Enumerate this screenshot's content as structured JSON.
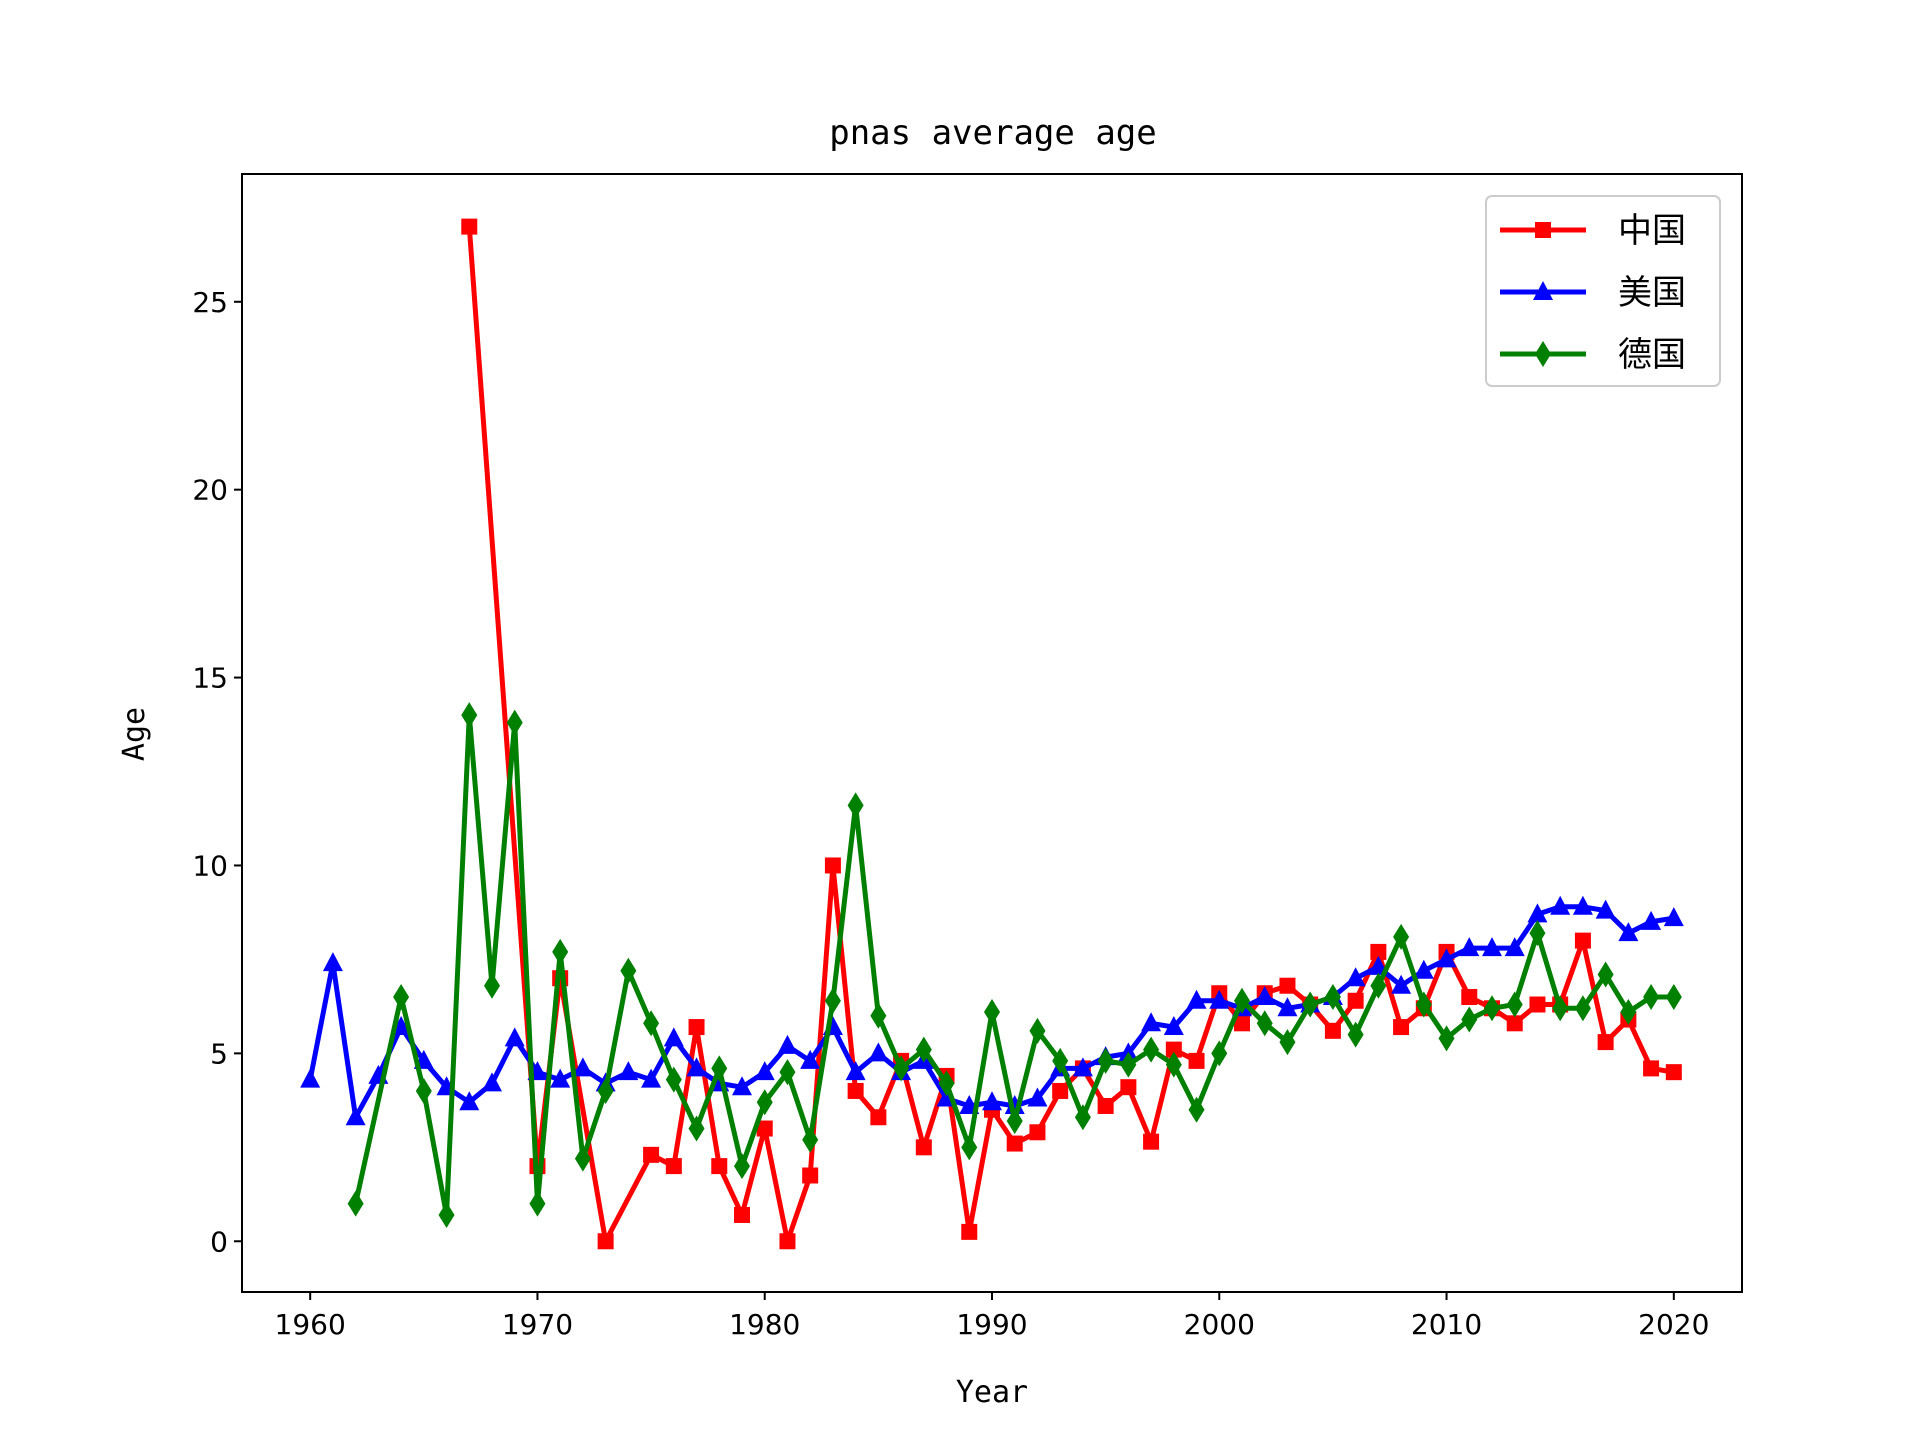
{
  "chart_data": {
    "type": "line",
    "title": "pnas average age",
    "xlabel": "Year",
    "ylabel": "Age",
    "xlim": [
      1957,
      2023
    ],
    "ylim": [
      -1.35,
      28.4
    ],
    "xticks": [
      "1960",
      "1970",
      "1980",
      "1990",
      "2000",
      "2010",
      "2020"
    ],
    "yticks": [
      "0",
      "5",
      "10",
      "15",
      "20",
      "25"
    ],
    "grid": false,
    "legend_position": "top-right",
    "series": [
      {
        "name": "中国",
        "color": "#ff0000",
        "marker": "square",
        "x": [
          1967,
          1970,
          1971,
          1973,
          1975,
          1976,
          1977,
          1978,
          1979,
          1980,
          1981,
          1982,
          1983,
          1984,
          1985,
          1986,
          1987,
          1988,
          1989,
          1990,
          1991,
          1992,
          1993,
          1994,
          1995,
          1996,
          1997,
          1998,
          1999,
          2000,
          2001,
          2002,
          2003,
          2004,
          2005,
          2006,
          2007,
          2008,
          2009,
          2010,
          2011,
          2012,
          2013,
          2014,
          2015,
          2016,
          2017,
          2018,
          2019,
          2020
        ],
        "y": [
          27,
          2,
          7,
          0,
          2.3,
          2,
          5.7,
          2,
          0.7,
          3,
          0,
          1.75,
          10,
          4,
          3.3,
          4.8,
          2.5,
          4.4,
          0.25,
          3.5,
          2.6,
          2.9,
          4,
          4.6,
          3.6,
          4.1,
          2.65,
          5.1,
          4.8,
          6.6,
          5.8,
          6.6,
          6.8,
          6.3,
          5.6,
          6.4,
          7.7,
          5.7,
          6.2,
          7.7,
          6.5,
          6.2,
          5.8,
          6.3,
          6.3,
          8,
          5.3,
          5.9,
          4.6,
          4.5
        ]
      },
      {
        "name": "美国",
        "color": "#0000ff",
        "marker": "triangle",
        "x": [
          1960,
          1961,
          1962,
          1963,
          1964,
          1965,
          1966,
          1967,
          1968,
          1969,
          1970,
          1971,
          1972,
          1973,
          1974,
          1975,
          1976,
          1977,
          1978,
          1979,
          1980,
          1981,
          1982,
          1983,
          1984,
          1985,
          1986,
          1987,
          1988,
          1989,
          1990,
          1991,
          1992,
          1993,
          1994,
          1995,
          1996,
          1997,
          1998,
          1999,
          2000,
          2001,
          2002,
          2003,
          2004,
          2005,
          2006,
          2007,
          2008,
          2009,
          2010,
          2011,
          2012,
          2013,
          2014,
          2015,
          2016,
          2017,
          2018,
          2019,
          2020
        ],
        "y": [
          4.3,
          7.4,
          3.3,
          4.4,
          5.7,
          4.8,
          4.1,
          3.7,
          4.2,
          5.4,
          4.5,
          4.3,
          4.6,
          4.2,
          4.5,
          4.3,
          5.4,
          4.6,
          4.2,
          4.1,
          4.5,
          5.2,
          4.8,
          5.7,
          4.5,
          5,
          4.5,
          4.8,
          3.8,
          3.6,
          3.7,
          3.6,
          3.8,
          4.6,
          4.6,
          4.9,
          5,
          5.8,
          5.7,
          6.4,
          6.4,
          6.2,
          6.5,
          6.2,
          6.3,
          6.5,
          7,
          7.3,
          6.8,
          7.2,
          7.5,
          7.8,
          7.8,
          7.8,
          8.7,
          8.9,
          8.9,
          8.8,
          8.2,
          8.5,
          8.6
        ]
      },
      {
        "name": "德国",
        "color": "#008000",
        "marker": "diamond",
        "x": [
          1962,
          1964,
          1965,
          1966,
          1967,
          1968,
          1969,
          1970,
          1971,
          1972,
          1973,
          1974,
          1975,
          1976,
          1977,
          1978,
          1979,
          1980,
          1981,
          1982,
          1983,
          1984,
          1985,
          1986,
          1987,
          1988,
          1989,
          1990,
          1991,
          1992,
          1993,
          1994,
          1995,
          1996,
          1997,
          1998,
          1999,
          2000,
          2001,
          2002,
          2003,
          2004,
          2005,
          2006,
          2007,
          2008,
          2009,
          2010,
          2011,
          2012,
          2013,
          2014,
          2015,
          2016,
          2017,
          2018,
          2019,
          2020
        ],
        "y": [
          1,
          6.5,
          4,
          0.7,
          14,
          6.8,
          13.8,
          1,
          7.7,
          2.2,
          4,
          7.2,
          5.8,
          4.3,
          3,
          4.6,
          2,
          3.7,
          4.5,
          2.7,
          6.4,
          11.6,
          6,
          4.6,
          5.1,
          4.2,
          2.5,
          6.1,
          3.2,
          5.6,
          4.8,
          3.3,
          4.8,
          4.7,
          5.1,
          4.7,
          3.5,
          5,
          6.4,
          5.8,
          5.3,
          6.3,
          6.5,
          5.5,
          6.8,
          8.1,
          6.3,
          5.4,
          5.9,
          6.2,
          6.3,
          8.2,
          6.2,
          6.2,
          7.1,
          6.1,
          6.5,
          6.5
        ]
      }
    ]
  }
}
